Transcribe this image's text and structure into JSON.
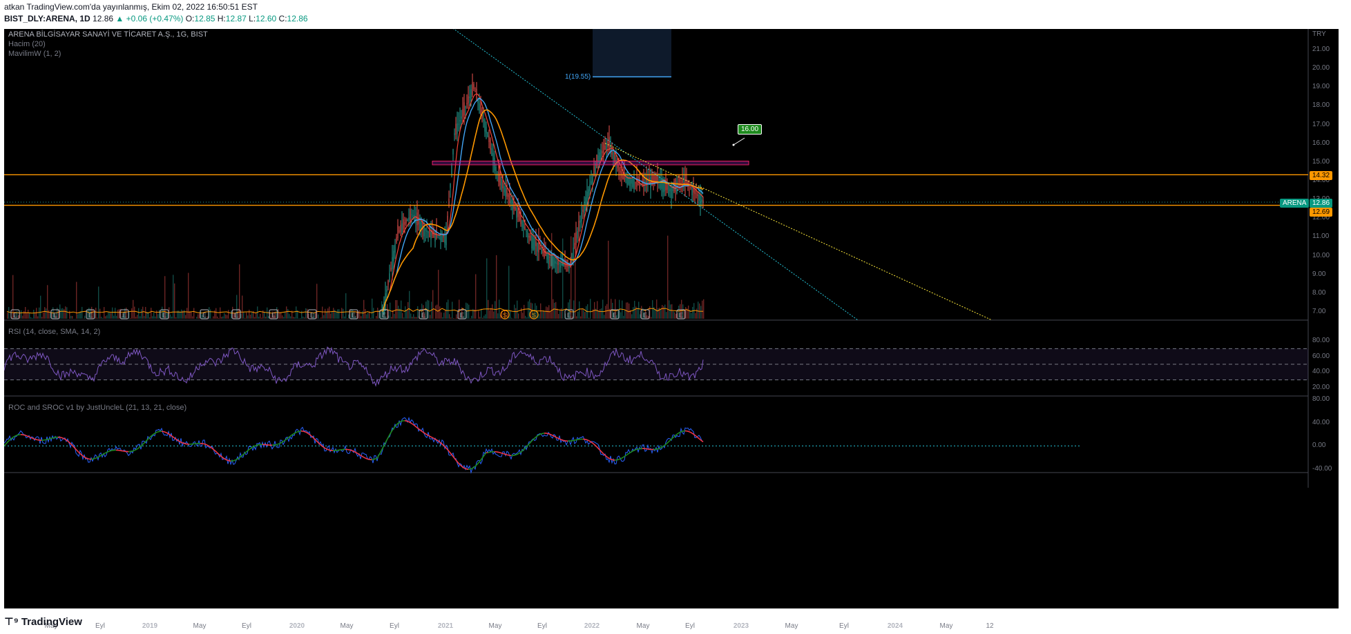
{
  "header": {
    "publisher_line": "atkan TradingView.com'da yayınlanmış, Ekim 02, 2022 16:50:51 EST",
    "symbol": "BIST_DLY:ARENA, 1D",
    "last": "12.86",
    "change": "+0.06 (+0.47%)",
    "o_label": "O:",
    "o": "12.85",
    "h_label": "H:",
    "h": "12.87",
    "l_label": "L:",
    "l": "12.60",
    "c_label": "C:",
    "c": "12.86"
  },
  "legend": {
    "title": "ARENA BİLGİSAYAR SANAYİ VE TİCARET A.Ş., 1G, BIST",
    "volume": "Hacim (20)",
    "mavilim": "MavilimW (1, 2)",
    "rsi": "RSI (14, close, SMA, 14, 2)",
    "roc": "ROC and SROC v1 by JustUncleL (21, 13, 21, close)"
  },
  "price_axis": {
    "currency": "TRY",
    "ticks": [
      "21.00",
      "20.00",
      "19.00",
      "18.00",
      "17.00",
      "16.00",
      "15.00",
      "14.00",
      "13.00",
      "12.00",
      "11.00",
      "10.00",
      "9.00",
      "8.00",
      "7.00"
    ]
  },
  "rsi_axis": {
    "ticks": [
      "80.00",
      "60.00",
      "40.00",
      "20.00"
    ]
  },
  "roc_axis": {
    "ticks": [
      "80.00",
      "40.00",
      "0.00",
      "-40.00"
    ]
  },
  "time_axis": {
    "ticks": [
      {
        "label": "May",
        "bold": false
      },
      {
        "label": "Eyl",
        "bold": false
      },
      {
        "label": "2019",
        "bold": true
      },
      {
        "label": "May",
        "bold": false
      },
      {
        "label": "Eyl",
        "bold": false
      },
      {
        "label": "2020",
        "bold": true
      },
      {
        "label": "May",
        "bold": false
      },
      {
        "label": "Eyl",
        "bold": false
      },
      {
        "label": "2021",
        "bold": true
      },
      {
        "label": "May",
        "bold": false
      },
      {
        "label": "Eyl",
        "bold": false
      },
      {
        "label": "2022",
        "bold": true
      },
      {
        "label": "May",
        "bold": false
      },
      {
        "label": "Eyl",
        "bold": false
      },
      {
        "label": "2023",
        "bold": true
      },
      {
        "label": "May",
        "bold": false
      },
      {
        "label": "Eyl",
        "bold": false
      },
      {
        "label": "2024",
        "bold": true
      },
      {
        "label": "May",
        "bold": false
      },
      {
        "label": "12",
        "bold": false
      }
    ]
  },
  "price_badges": {
    "resistance": "14.32",
    "symbol_name": "ARENA",
    "last_price": "12.86",
    "support": "12.69"
  },
  "annotations": {
    "target_label": "1(19.55)",
    "callout": "16.00"
  },
  "event_markers": [
    "E",
    "E",
    "E",
    "E",
    "E",
    "E",
    "E",
    "E",
    "E",
    "E",
    "E",
    "E",
    "E",
    "S",
    "S",
    "E",
    "E",
    "E",
    "E"
  ],
  "footer": {
    "brand": "TradingView"
  },
  "colors": {
    "background": "#000000",
    "orange_line": "#ff9800",
    "blue_line": "#2962ff",
    "rsi_line": "#7e57c2",
    "callout_green": "#089981",
    "up": "#089981",
    "down": "#f23645"
  },
  "chart_data": {
    "type": "candlestick",
    "symbol": "ARENA",
    "interval": "1D",
    "price_range": [
      6.8,
      21.6
    ],
    "price_series_approx": [
      {
        "t": "2021-01",
        "v": 8.0
      },
      {
        "t": "2021-02",
        "v": 16.5
      },
      {
        "t": "2021-03",
        "v": 19.0
      },
      {
        "t": "2021-04",
        "v": 17.0
      },
      {
        "t": "2021-05",
        "v": 14.0
      },
      {
        "t": "2021-06",
        "v": 12.5
      },
      {
        "t": "2021-07",
        "v": 11.5
      },
      {
        "t": "2021-08",
        "v": 10.5
      },
      {
        "t": "2021-09",
        "v": 9.8
      },
      {
        "t": "2021-10",
        "v": 9.3
      },
      {
        "t": "2021-11",
        "v": 10.5
      },
      {
        "t": "2021-12",
        "v": 14.5
      },
      {
        "t": "2022-01",
        "v": 15.5
      },
      {
        "t": "2022-02",
        "v": 14.0
      },
      {
        "t": "2022-03",
        "v": 13.6
      },
      {
        "t": "2022-04",
        "v": 14.2
      },
      {
        "t": "2022-05",
        "v": 13.4
      },
      {
        "t": "2022-06",
        "v": 13.5
      },
      {
        "t": "2022-07",
        "v": 13.2
      },
      {
        "t": "2022-08",
        "v": 13.9
      },
      {
        "t": "2022-09",
        "v": 13.2
      },
      {
        "t": "2022-10",
        "v": 12.86
      }
    ],
    "horizontal_levels": [
      14.32,
      12.69
    ],
    "zone": [
      14.85,
      15.05
    ],
    "rsi_range": [
      20,
      80
    ],
    "rsi_bands": [
      70,
      50,
      30
    ],
    "roc_range": [
      -40,
      80
    ]
  }
}
